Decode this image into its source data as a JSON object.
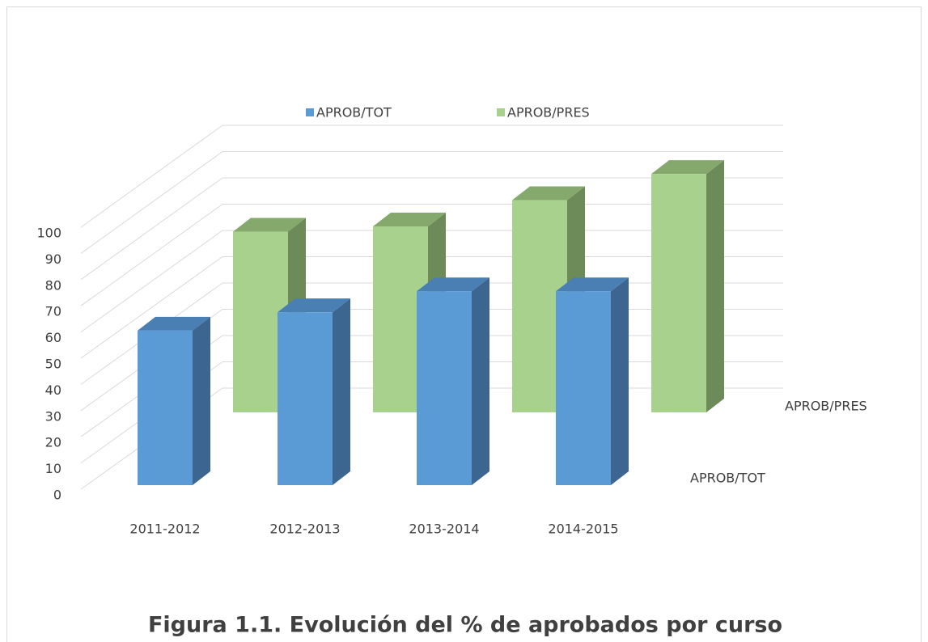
{
  "chart_data": {
    "type": "bar3d",
    "title": "Figura 1.1. Evolución del % de aprobados por curso",
    "categories": [
      "2011-2012",
      "2012-2013",
      "2013-2014",
      "2014-2015"
    ],
    "series": [
      {
        "name": "APROB/TOT",
        "color": "#5b9bd5",
        "values": [
          59,
          66,
          74,
          74
        ]
      },
      {
        "name": "APROB/PRES",
        "color": "#a9d18e",
        "values": [
          69,
          71,
          81,
          91
        ]
      }
    ],
    "ylim": [
      0,
      100
    ],
    "yticks": [
      0,
      10,
      20,
      30,
      40,
      50,
      60,
      70,
      80,
      90,
      100
    ],
    "grid": true,
    "legend": "top"
  }
}
